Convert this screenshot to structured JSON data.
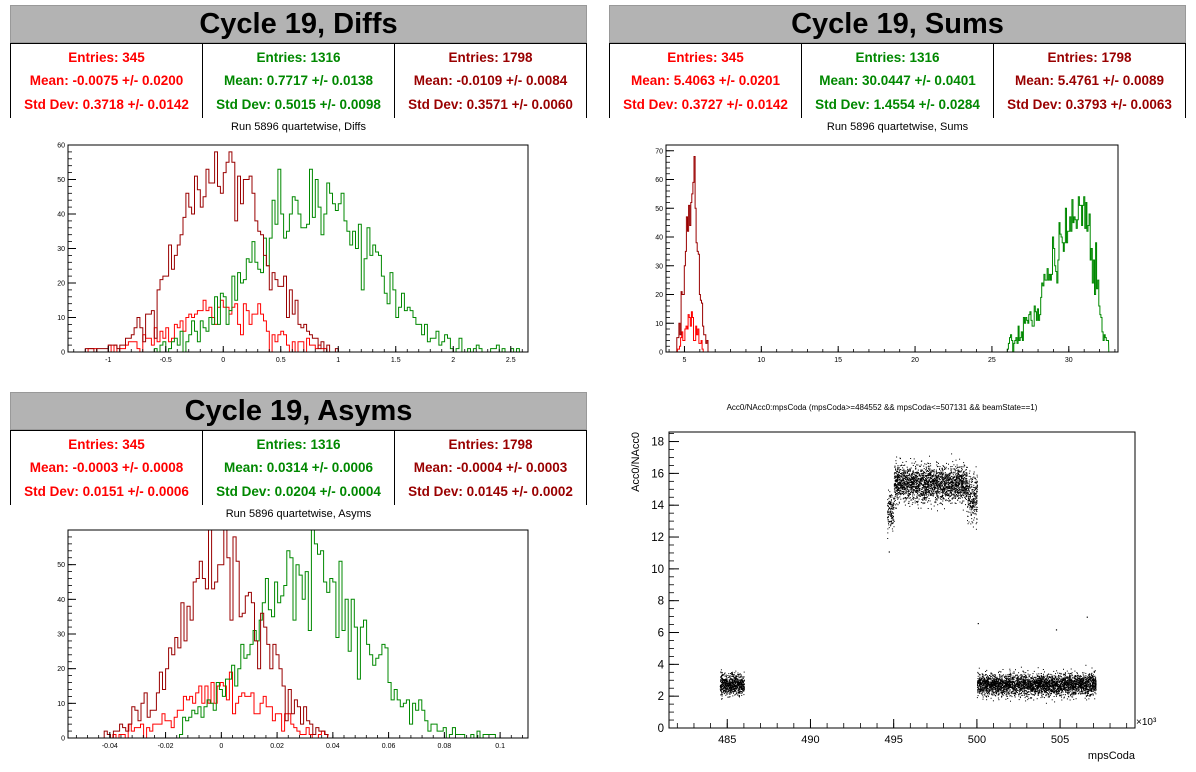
{
  "colors": {
    "red": "#ff0000",
    "green": "#008800",
    "darkred": "#990000",
    "title_bg": "#b3b3b3"
  },
  "diffs": {
    "title": "Cycle 19, Diffs",
    "subtitle": "Run 5896 quartetwise, Diffs",
    "stats": [
      {
        "entries": "Entries: 345",
        "mean": "Mean: -0.0075 +/- 0.0200",
        "std": "Std Dev: 0.3718 +/- 0.0142"
      },
      {
        "entries": "Entries: 1316",
        "mean": "Mean: 0.7717 +/- 0.0138",
        "std": "Std Dev: 0.5015 +/- 0.0098"
      },
      {
        "entries": "Entries: 1798",
        "mean": "Mean: -0.0109 +/- 0.0084",
        "std": "Std Dev: 0.3571 +/- 0.0060"
      }
    ]
  },
  "sums": {
    "title": "Cycle 19, Sums",
    "subtitle": "Run 5896 quartetwise, Sums",
    "stats": [
      {
        "entries": "Entries: 345",
        "mean": "Mean: 5.4063 +/- 0.0201",
        "std": "Std Dev: 0.3727 +/- 0.0142"
      },
      {
        "entries": "Entries: 1316",
        "mean": "Mean: 30.0447 +/- 0.0401",
        "std": "Std Dev: 1.4554 +/- 0.0284"
      },
      {
        "entries": "Entries: 1798",
        "mean": "Mean: 5.4761 +/- 0.0089",
        "std": "Std Dev: 0.3793 +/- 0.0063"
      }
    ]
  },
  "asyms": {
    "title": "Cycle 19, Asyms",
    "subtitle": "Run 5896 quartetwise, Asyms",
    "stats": [
      {
        "entries": "Entries: 345",
        "mean": "Mean: -0.0003 +/- 0.0008",
        "std": "Std Dev: 0.0151 +/- 0.0006"
      },
      {
        "entries": "Entries: 1316",
        "mean": "Mean: 0.0314 +/- 0.0006",
        "std": "Std Dev: 0.0204 +/- 0.0004"
      },
      {
        "entries": "Entries: 1798",
        "mean": "Mean: -0.0004 +/- 0.0003",
        "std": "Std Dev: 0.0145 +/- 0.0002"
      }
    ]
  },
  "chart_data": [
    {
      "id": "diffs",
      "type": "histogram",
      "xlim": [
        -1.35,
        2.65
      ],
      "ylim": [
        0,
        60
      ],
      "xticks": [
        -1,
        -0.5,
        0,
        0.5,
        1,
        1.5,
        2,
        2.5
      ],
      "xtick_labels": [
        "-1",
        "-0.5",
        "0",
        "0.5",
        "1",
        "1.5",
        "2",
        "2.5"
      ],
      "yticks": [
        0,
        10,
        20,
        30,
        40,
        50,
        60
      ],
      "series": [
        {
          "color": "#ff0000",
          "mean": -0.0075,
          "std": 0.3718,
          "peak": 13,
          "range": [
            -1.3,
            1.0
          ],
          "bins": 0.025,
          "seed": 3
        },
        {
          "color": "#008800",
          "mean": 0.7717,
          "std": 0.5015,
          "peak": 45,
          "range": [
            -0.6,
            2.6
          ],
          "bins": 0.025,
          "seed": 7
        },
        {
          "color": "#990000",
          "mean": -0.0109,
          "std": 0.3571,
          "peak": 52,
          "range": [
            -1.2,
            1.0
          ],
          "bins": 0.025,
          "seed": 11
        }
      ]
    },
    {
      "id": "sums",
      "type": "histogram",
      "xlim": [
        3.8,
        33.2
      ],
      "ylim": [
        0,
        72
      ],
      "xticks": [
        5,
        10,
        15,
        20,
        25,
        30
      ],
      "xtick_labels": [
        "5",
        "10",
        "15",
        "20",
        "25",
        "30"
      ],
      "yticks": [
        0,
        10,
        20,
        30,
        40,
        50,
        60,
        70
      ],
      "series": [
        {
          "color": "#ff0000",
          "mean": 5.4063,
          "std": 0.3727,
          "peak": 12,
          "range": [
            4.4,
            6.6
          ],
          "bins": 0.07,
          "seed": 5
        },
        {
          "color": "#008800",
          "mean": 30.0447,
          "std": 1.4554,
          "peak": 50,
          "range": [
            26.0,
            32.6
          ],
          "bins": 0.07,
          "seed": 9,
          "skew": true
        },
        {
          "color": "#990000",
          "mean": 5.4761,
          "std": 0.3793,
          "peak": 62,
          "range": [
            4.5,
            6.6
          ],
          "bins": 0.07,
          "seed": 13
        }
      ]
    },
    {
      "id": "asyms",
      "type": "histogram",
      "xlim": [
        -0.055,
        0.11
      ],
      "ylim": [
        0,
        60
      ],
      "xticks": [
        -0.04,
        -0.02,
        0,
        0.02,
        0.04,
        0.06,
        0.08,
        0.1
      ],
      "xtick_labels": [
        "-0.04",
        "-0.02",
        "0",
        "0.02",
        "0.04",
        "0.06",
        "0.08",
        "0.1"
      ],
      "yticks": [
        0,
        10,
        20,
        30,
        40,
        50
      ],
      "series": [
        {
          "color": "#ff0000",
          "mean": -0.0003,
          "std": 0.0151,
          "peak": 14,
          "range": [
            -0.04,
            0.04
          ],
          "bins": 0.0011,
          "seed": 21
        },
        {
          "color": "#008800",
          "mean": 0.0314,
          "std": 0.0204,
          "peak": 47,
          "range": [
            -0.015,
            0.1
          ],
          "bins": 0.0011,
          "seed": 23
        },
        {
          "color": "#990000",
          "mean": -0.0004,
          "std": 0.0145,
          "peak": 52,
          "range": [
            -0.042,
            0.038
          ],
          "bins": 0.0011,
          "seed": 27
        }
      ]
    },
    {
      "id": "scatter",
      "type": "scatter",
      "title": "Acc0/NAcc0:mpsCoda (mpsCoda>=484552 && mpsCoda<=507131 && beamState==1)",
      "xlabel": "mpsCoda",
      "ylabel": "Acc0/NAcc0",
      "x_multiplier": "×10³",
      "xlim": [
        481.5,
        509.5
      ],
      "ylim": [
        0,
        18.6
      ],
      "xticks": [
        485,
        490,
        495,
        500,
        505
      ],
      "xtick_labels": [
        "485",
        "490",
        "495",
        "500",
        "505"
      ],
      "yticks": [
        0,
        2,
        4,
        6,
        8,
        10,
        12,
        14,
        16,
        18
      ],
      "clusters": [
        {
          "x": [
            484.55,
            486.0
          ],
          "y_mean": 2.75,
          "y_std": 0.32,
          "n": 700
        },
        {
          "x": [
            494.6,
            495.0
          ],
          "y_mean": 13.7,
          "y_std": 0.55,
          "n": 140
        },
        {
          "x": [
            495.0,
            499.4
          ],
          "y_mean": 15.4,
          "y_std": 0.55,
          "n": 2200
        },
        {
          "x": [
            499.4,
            500.0
          ],
          "y_mean": 14.5,
          "y_std": 0.7,
          "n": 250
        },
        {
          "x": [
            500.0,
            507.13
          ],
          "y_mean": 2.75,
          "y_std": 0.33,
          "n": 3400
        }
      ],
      "outliers": [
        [
          500.05,
          6.6
        ],
        [
          504.75,
          6.2
        ],
        [
          506.6,
          7.0
        ],
        [
          494.7,
          11.1
        ]
      ]
    }
  ]
}
